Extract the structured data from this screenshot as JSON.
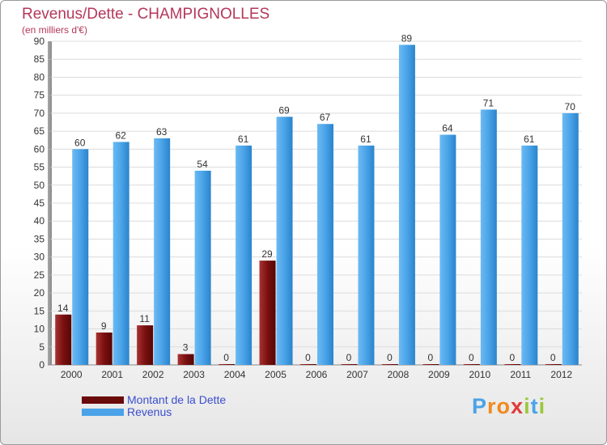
{
  "header": {
    "title": "Revenus/Dette - CHAMPIGNOLLES",
    "subtitle": "(en milliers d'€)"
  },
  "chart_data": {
    "type": "bar",
    "categories": [
      "2000",
      "2001",
      "2002",
      "2003",
      "2004",
      "2005",
      "2006",
      "2007",
      "2008",
      "2009",
      "2010",
      "2011",
      "2012"
    ],
    "series": [
      {
        "name": "Montant de la Dette",
        "color": "#7a1010",
        "values": [
          14,
          9,
          11,
          3,
          0,
          29,
          0,
          0,
          0,
          0,
          0,
          0,
          0
        ]
      },
      {
        "name": "Revenus",
        "color": "#4aa3e8",
        "values": [
          60,
          62,
          63,
          54,
          61,
          69,
          67,
          61,
          89,
          64,
          71,
          61,
          70
        ]
      }
    ],
    "ylim": [
      0,
      90
    ],
    "yticks": [
      0,
      5,
      10,
      15,
      20,
      25,
      30,
      35,
      40,
      45,
      50,
      55,
      60,
      65,
      70,
      75,
      80,
      85,
      90
    ],
    "grid": true,
    "legend_position": "bottom-left"
  },
  "legend": {
    "items": [
      {
        "label": "Montant de la Dette",
        "color": "#6b0a0a"
      },
      {
        "label": "Revenus",
        "color": "#4aa3e8"
      }
    ]
  },
  "brand": {
    "letters": [
      {
        "ch": "P",
        "color": "#4aa3e8"
      },
      {
        "ch": "r",
        "color": "#f08a1c"
      },
      {
        "ch": "o",
        "color": "#f08a1c"
      },
      {
        "ch": "x",
        "color": "#e03a3a"
      },
      {
        "ch": "i",
        "color": "#9ac83a"
      },
      {
        "ch": "t",
        "color": "#4aa3e8"
      },
      {
        "ch": "i",
        "color": "#9ac83a"
      }
    ]
  }
}
